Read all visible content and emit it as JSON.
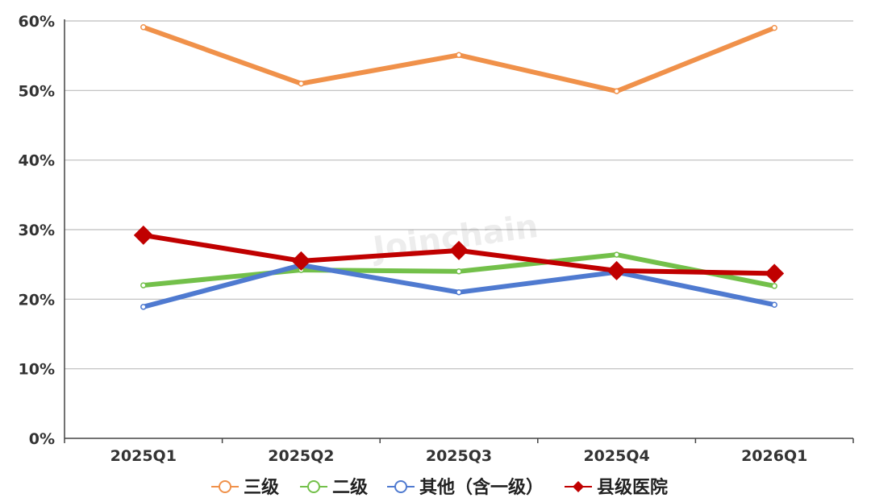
{
  "chart_data": {
    "type": "line",
    "categories": [
      "2025Q1",
      "2025Q2",
      "2025Q3",
      "2025Q4",
      "2026Q1"
    ],
    "series": [
      {
        "name": "三级",
        "values": [
          59.1,
          51.0,
          55.1,
          49.9,
          59.0
        ],
        "color": "#f0914a",
        "marker": "circle"
      },
      {
        "name": "二级",
        "values": [
          22.0,
          24.2,
          24.0,
          26.4,
          21.9
        ],
        "color": "#73c04a",
        "marker": "circle"
      },
      {
        "name": "其他（含一级）",
        "values": [
          18.9,
          24.9,
          21.0,
          23.9,
          19.2
        ],
        "color": "#4f7ad0",
        "marker": "circle"
      },
      {
        "name": "县级医院",
        "values": [
          29.2,
          25.5,
          27.0,
          24.1,
          23.7
        ],
        "color": "#c00000",
        "marker": "diamond"
      }
    ],
    "ylim": [
      0,
      60
    ],
    "yticks": [
      "0%",
      "10%",
      "20%",
      "30%",
      "40%",
      "50%",
      "60%"
    ],
    "grid": true,
    "legend_position": "bottom",
    "watermark": "Joinchain"
  }
}
